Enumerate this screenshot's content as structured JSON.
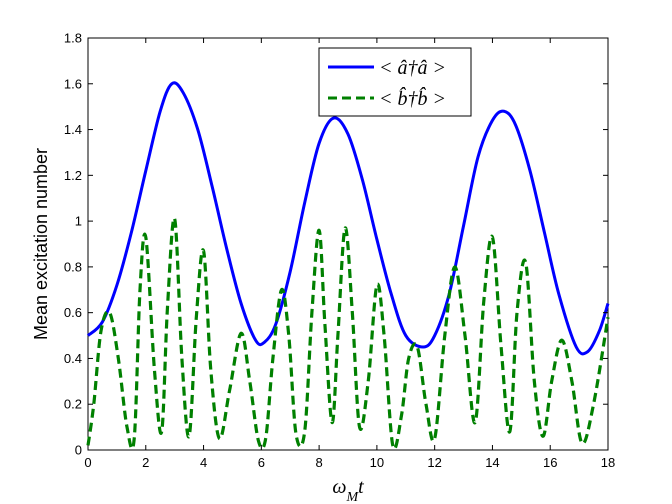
{
  "chart_data": {
    "type": "line",
    "xlabel": "ω_M t",
    "xlabel_parts": {
      "base": "ω",
      "subscript": "M",
      "suffix": "t"
    },
    "ylabel": "Mean excitation number",
    "xlim": [
      0,
      18
    ],
    "ylim": [
      0,
      1.8
    ],
    "xticks": [
      0,
      2,
      4,
      6,
      8,
      10,
      12,
      14,
      16,
      18
    ],
    "yticks": [
      0,
      0.2,
      0.4,
      0.6,
      0.8,
      1,
      1.2,
      1.4,
      1.6,
      1.8
    ],
    "xtick_labels": [
      "0",
      "2",
      "4",
      "6",
      "8",
      "10",
      "12",
      "14",
      "16",
      "18"
    ],
    "ytick_labels": [
      "0",
      "0.2",
      "0.4",
      "0.6",
      "0.8",
      "1",
      "1.2",
      "1.4",
      "1.6",
      "1.8"
    ],
    "grid": false,
    "legend_position": "top-right",
    "series": [
      {
        "name": "< â†â >",
        "style": "solid",
        "color": "#0000ff",
        "x": [
          0,
          0.5,
          1,
          1.5,
          2,
          2.5,
          2.9,
          3.3,
          3.8,
          4.3,
          4.8,
          5.3,
          5.8,
          6.1,
          6.5,
          7,
          7.5,
          8,
          8.5,
          9,
          9.5,
          10,
          10.5,
          11,
          11.6,
          12,
          12.5,
          13,
          13.5,
          14,
          14.4,
          14.8,
          15.3,
          15.8,
          16.3,
          16.9,
          17.3,
          17.7,
          18
        ],
        "y": [
          0.5,
          0.56,
          0.72,
          0.95,
          1.22,
          1.48,
          1.6,
          1.56,
          1.4,
          1.15,
          0.88,
          0.64,
          0.48,
          0.47,
          0.55,
          0.78,
          1.08,
          1.34,
          1.45,
          1.38,
          1.18,
          0.92,
          0.68,
          0.5,
          0.45,
          0.5,
          0.68,
          0.98,
          1.28,
          1.44,
          1.48,
          1.42,
          1.22,
          0.95,
          0.68,
          0.45,
          0.43,
          0.52,
          0.64
        ]
      },
      {
        "name": "< b̂†b̂ >",
        "style": "dashed",
        "color": "#008000",
        "x": [
          0,
          0.2,
          0.45,
          0.75,
          1.05,
          1.35,
          1.6,
          1.8,
          2,
          2.3,
          2.55,
          2.75,
          3,
          3.25,
          3.5,
          3.75,
          4,
          4.25,
          4.55,
          4.9,
          5.3,
          5.6,
          5.9,
          6.15,
          6.4,
          6.7,
          6.95,
          7.2,
          7.5,
          7.75,
          8,
          8.2,
          8.45,
          8.65,
          8.9,
          9.15,
          9.4,
          9.7,
          10,
          10.25,
          10.55,
          10.85,
          11.1,
          11.4,
          11.7,
          12,
          12.35,
          12.7,
          13.05,
          13.4,
          13.7,
          14,
          14.3,
          14.6,
          14.85,
          15.15,
          15.45,
          15.75,
          16.05,
          16.4,
          16.75,
          17.1,
          17.5,
          18
        ],
        "y": [
          0.02,
          0.2,
          0.52,
          0.6,
          0.4,
          0.1,
          0.05,
          0.7,
          0.93,
          0.35,
          0.08,
          0.62,
          1.01,
          0.4,
          0.06,
          0.58,
          0.87,
          0.35,
          0.05,
          0.26,
          0.51,
          0.3,
          0.04,
          0.05,
          0.4,
          0.7,
          0.5,
          0.07,
          0.08,
          0.6,
          0.96,
          0.55,
          0.12,
          0.5,
          0.97,
          0.6,
          0.1,
          0.3,
          0.72,
          0.5,
          0.02,
          0.15,
          0.4,
          0.45,
          0.2,
          0.05,
          0.5,
          0.8,
          0.5,
          0.12,
          0.65,
          0.93,
          0.45,
          0.08,
          0.6,
          0.82,
          0.3,
          0.06,
          0.3,
          0.48,
          0.3,
          0.03,
          0.2,
          0.58
        ]
      }
    ]
  }
}
